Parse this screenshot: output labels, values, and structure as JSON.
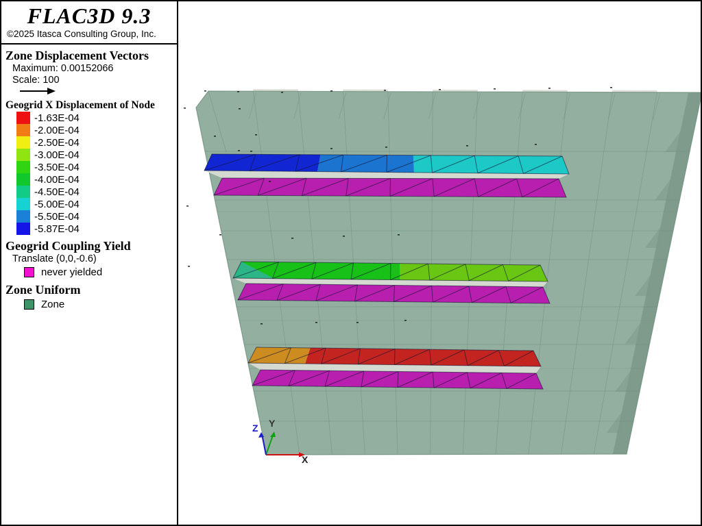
{
  "header": {
    "title": "FLAC3D 9.3",
    "copyright": "©2025 Itasca Consulting Group, Inc."
  },
  "vectors_legend": {
    "title": "Zone Displacement Vectors",
    "maximum": "Maximum: 0.00152066",
    "scale": "Scale: 100",
    "arrow_icon": "right-arrow",
    "arrow_color": "#000000"
  },
  "colormap_legend": {
    "title": "Geogrid X Displacement of Node",
    "entries": [
      {
        "label": "-1.63E-04",
        "color": "#ee1111"
      },
      {
        "label": "-2.00E-04",
        "color": "#f07c15"
      },
      {
        "label": "-2.50E-04",
        "color": "#f0ee12"
      },
      {
        "label": "-3.00E-04",
        "color": "#90e412"
      },
      {
        "label": "-3.50E-04",
        "color": "#31d411"
      },
      {
        "label": "-4.00E-04",
        "color": "#10c72c"
      },
      {
        "label": "-4.50E-04",
        "color": "#12cb86"
      },
      {
        "label": "-5.00E-04",
        "color": "#16d2d2"
      },
      {
        "label": "-5.50E-04",
        "color": "#1b80d8"
      },
      {
        "label": "-5.87E-04",
        "color": "#1515e8"
      }
    ]
  },
  "coupling_legend": {
    "title": "Geogrid Coupling Yield",
    "subtitle": "Translate (0,0,-0.6)",
    "entries": [
      {
        "label": "never yielded",
        "color": "#f211cf"
      }
    ]
  },
  "zone_legend": {
    "title": "Zone Uniform",
    "entries": [
      {
        "label": "Zone",
        "color": "#3c9468"
      }
    ]
  },
  "viewport": {
    "mesh": {
      "face": "#93af9f",
      "line": "#6f8e7d",
      "side": "#7c998a",
      "sliver": "#d8dcd4",
      "strip_edge": "rgba(20,20,50,0.6)"
    },
    "axes": {
      "x": {
        "label": "X",
        "color": "#cc1111",
        "label_color": "#222222"
      },
      "y": {
        "label": "Y",
        "color": "#12a012",
        "label_color": "#333333"
      },
      "z": {
        "label": "Z",
        "color": "#1d1dcf",
        "label_color": "#1d1dcf"
      }
    },
    "strips": [
      {
        "name": "geogrid-displacement-row-1",
        "segments": [
          {
            "color": "#1126d2",
            "to": 0.31
          },
          {
            "color": "#1b74cf",
            "to": 0.575
          },
          {
            "color": "#1cc9c7",
            "to": 1
          }
        ]
      },
      {
        "name": "coupling-yield-row-1",
        "segments": [
          {
            "color": "#b81fae",
            "to": 1
          }
        ]
      },
      {
        "name": "geogrid-displacement-row-2",
        "wedge_color": "#2cb687",
        "segments": [
          {
            "color": "#17c117",
            "to": 0.53
          },
          {
            "color": "#69c713",
            "to": 1
          }
        ]
      },
      {
        "name": "coupling-yield-row-2",
        "segments": [
          {
            "color": "#b81fae",
            "to": 1
          }
        ]
      },
      {
        "name": "geogrid-displacement-row-3",
        "segments": [
          {
            "color": "#cc8c1f",
            "to": 0.195
          },
          {
            "color": "#c42420",
            "to": 1
          }
        ]
      },
      {
        "name": "coupling-yield-row-3",
        "segments": [
          {
            "color": "#b81fae",
            "to": 1
          }
        ]
      }
    ]
  }
}
